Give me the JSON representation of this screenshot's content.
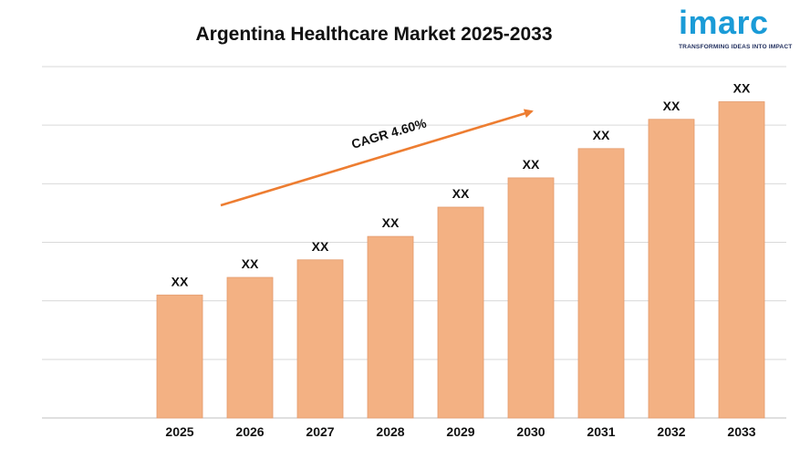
{
  "title": "Argentina Healthcare Market 2025-2033",
  "logo": {
    "word": "imarc",
    "tagline": "TRANSFORMING IDEAS INTO IMPACT",
    "color": "#1a9bd7"
  },
  "chart_data": {
    "type": "bar",
    "title": "Argentina Healthcare Market 2025-2033",
    "xlabel": "",
    "ylabel": "",
    "categories": [
      "2025",
      "2026",
      "2027",
      "2028",
      "2029",
      "2030",
      "2031",
      "2032",
      "2033"
    ],
    "values": [
      2.1,
      2.4,
      2.7,
      3.1,
      3.6,
      4.1,
      4.6,
      5.1,
      5.4
    ],
    "data_labels": [
      "XX",
      "XX",
      "XX",
      "XX",
      "XX",
      "XX",
      "XX",
      "XX",
      "XX"
    ],
    "ylim": [
      0,
      6
    ],
    "grid": true,
    "legend": "none",
    "bar_color": "#f3b183",
    "bar_edge_color": "#e49a6b",
    "annotation": {
      "text": "CAGR  4.60%",
      "arrow_color": "#ed7d31"
    }
  }
}
